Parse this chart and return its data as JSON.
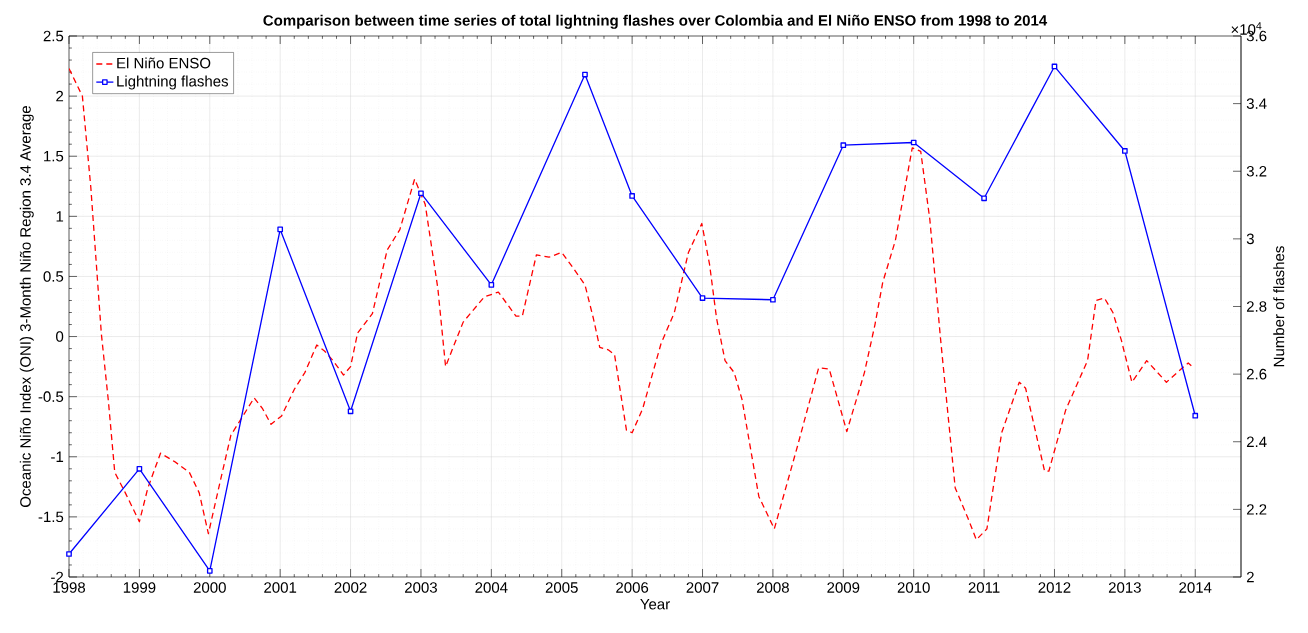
{
  "chart_data": {
    "type": "line",
    "title": "Comparison between time series of total lightning flashes over Colombia and El Niño ENSO from 1998 to 2014",
    "xlabel": "Year",
    "ylabel": "Oceanic Niño Index (ONI) 3-Month Niño Region 3.4 Average",
    "y2label": "Number of flashes",
    "xlim": [
      1998,
      2014.65
    ],
    "xticks": [
      1998,
      1999,
      2000,
      2001,
      2002,
      2003,
      2004,
      2005,
      2006,
      2007,
      2008,
      2009,
      2010,
      2011,
      2012,
      2013,
      2014
    ],
    "ylim": [
      -2,
      2.5
    ],
    "yticks": [
      -2,
      -1.5,
      -1,
      -0.5,
      0,
      0.5,
      1,
      1.5,
      2,
      2.5
    ],
    "y2lim": [
      2,
      3.6
    ],
    "y2ticks": [
      2,
      2.2,
      2.4,
      2.6,
      2.8,
      3,
      3.2,
      3.4,
      3.6
    ],
    "annotations": [
      "×10$^{4}$"
    ],
    "grid": true,
    "legend": "top left",
    "series": [
      {
        "name": "El Niño ENSO",
        "color": "#ff0000",
        "line_style": "dashed",
        "marker": "none",
        "x": [
          1998.0,
          1998.19,
          1998.31,
          1998.46,
          1998.56,
          1998.65,
          1998.8,
          1999.0,
          1999.12,
          1999.3,
          1999.5,
          1999.71,
          1999.85,
          1999.98,
          2000.15,
          2000.3,
          2000.45,
          2000.63,
          2000.75,
          2000.87,
          2001.02,
          2001.2,
          2001.35,
          2001.52,
          2001.63,
          2001.75,
          2001.9,
          2002.0,
          2002.1,
          2002.31,
          2002.52,
          2002.7,
          2002.91,
          2003.06,
          2003.24,
          2003.35,
          2003.45,
          2003.6,
          2003.9,
          2004.1,
          2004.35,
          2004.44,
          2004.64,
          2004.82,
          2005.0,
          2005.15,
          2005.33,
          2005.45,
          2005.54,
          2005.66,
          2005.75,
          2005.92,
          2006.0,
          2006.15,
          2006.41,
          2006.6,
          2006.8,
          2006.99,
          2007.1,
          2007.2,
          2007.32,
          2007.45,
          2007.56,
          2007.8,
          2008.02,
          2008.35,
          2008.65,
          2008.8,
          2009.05,
          2009.3,
          2009.45,
          2009.56,
          2009.74,
          2009.98,
          2010.1,
          2010.23,
          2010.38,
          2010.59,
          2010.77,
          2010.89,
          2011.04,
          2011.25,
          2011.5,
          2011.59,
          2011.86,
          2011.92,
          2012.16,
          2012.47,
          2012.59,
          2012.71,
          2012.83,
          2012.95,
          2013.1,
          2013.31,
          2013.59,
          2013.8,
          2013.9,
          2013.98
        ],
        "values": [
          2.23,
          2.0,
          1.24,
          0.02,
          -0.54,
          -1.13,
          -1.3,
          -1.54,
          -1.26,
          -0.97,
          -1.04,
          -1.13,
          -1.3,
          -1.64,
          -1.2,
          -0.82,
          -0.68,
          -0.51,
          -0.6,
          -0.73,
          -0.66,
          -0.44,
          -0.3,
          -0.07,
          -0.12,
          -0.2,
          -0.32,
          -0.25,
          0.03,
          0.19,
          0.72,
          0.89,
          1.31,
          1.1,
          0.4,
          -0.25,
          -0.1,
          0.12,
          0.33,
          0.37,
          0.17,
          0.17,
          0.68,
          0.66,
          0.7,
          0.58,
          0.43,
          0.15,
          -0.09,
          -0.11,
          -0.15,
          -0.78,
          -0.8,
          -0.6,
          -0.06,
          0.2,
          0.7,
          0.94,
          0.6,
          0.15,
          -0.2,
          -0.3,
          -0.52,
          -1.33,
          -1.6,
          -0.91,
          -0.26,
          -0.27,
          -0.79,
          -0.3,
          0.1,
          0.45,
          0.8,
          1.57,
          1.54,
          0.97,
          -0.01,
          -1.26,
          -1.51,
          -1.69,
          -1.6,
          -0.8,
          -0.38,
          -0.43,
          -1.12,
          -1.12,
          -0.61,
          -0.2,
          0.3,
          0.32,
          0.2,
          -0.03,
          -0.38,
          -0.2,
          -0.38,
          -0.27,
          -0.22,
          -0.26
        ]
      },
      {
        "name": "Lightning flashes",
        "color": "#0000ff",
        "line_style": "solid",
        "marker": "square",
        "axis": "y2",
        "x": [
          1998,
          1999,
          2000,
          2001,
          2002,
          2003,
          2004,
          2005.33,
          2006,
          2007,
          2008,
          2009,
          2010,
          2011,
          2012,
          2013,
          2014
        ],
        "values": [
          2.068,
          2.32,
          2.018,
          3.028,
          2.49,
          3.135,
          2.864,
          3.486,
          3.127,
          2.825,
          2.82,
          3.277,
          3.285,
          3.12,
          3.51,
          3.26,
          2.477
        ]
      }
    ]
  }
}
